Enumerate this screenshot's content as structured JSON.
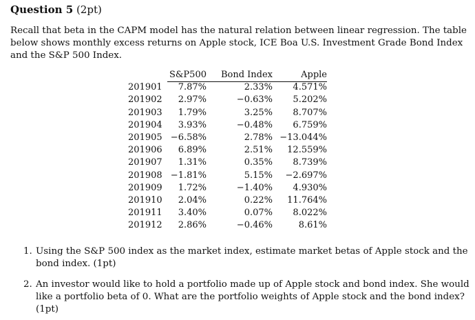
{
  "question": {
    "number_label": "Question 5",
    "points_label": "(2pt)"
  },
  "intro_lines": [
    "Recall that beta in the CAPM model has the natural relation between linear regression. The table",
    "below shows monthly excess returns on Apple stock, ICE Boa U.S. Investment Grade Bond Index",
    "and the S&P 500 Index."
  ],
  "table": {
    "headers": [
      "S&P500",
      "Bond Index",
      "Apple"
    ],
    "rows": [
      {
        "month": "201901",
        "sp500": "7.87%",
        "bond": "2.33%",
        "apple": "4.571%"
      },
      {
        "month": "201902",
        "sp500": "2.97%",
        "bond": "−0.63%",
        "apple": "5.202%"
      },
      {
        "month": "201903",
        "sp500": "1.79%",
        "bond": "3.25%",
        "apple": "8.707%"
      },
      {
        "month": "201904",
        "sp500": "3.93%",
        "bond": "−0.48%",
        "apple": "6.759%"
      },
      {
        "month": "201905",
        "sp500": "−6.58%",
        "bond": "2.78%",
        "apple": "−13.044%"
      },
      {
        "month": "201906",
        "sp500": "6.89%",
        "bond": "2.51%",
        "apple": "12.559%"
      },
      {
        "month": "201907",
        "sp500": "1.31%",
        "bond": "0.35%",
        "apple": "8.739%"
      },
      {
        "month": "201908",
        "sp500": "−1.81%",
        "bond": "5.15%",
        "apple": "−2.697%"
      },
      {
        "month": "201909",
        "sp500": "1.72%",
        "bond": "−1.40%",
        "apple": "4.930%"
      },
      {
        "month": "201910",
        "sp500": "2.04%",
        "bond": "0.22%",
        "apple": "11.764%"
      },
      {
        "month": "201911",
        "sp500": "3.40%",
        "bond": "0.07%",
        "apple": "8.022%"
      },
      {
        "month": "201912",
        "sp500": "2.86%",
        "bond": "−0.46%",
        "apple": "8.61%"
      }
    ]
  },
  "sub_questions": [
    {
      "number": "1.",
      "lines": [
        "Using the S&P 500 index as the market index, estimate market betas of Apple stock and the",
        "bond index. (1pt)"
      ]
    },
    {
      "number": "2.",
      "lines": [
        "An investor would like to hold a portfolio made up of Apple stock and bond index. She would",
        "like a portfolio beta of 0. What are the portfolio weights of Apple stock and the bond index?",
        "(1pt)"
      ]
    }
  ]
}
